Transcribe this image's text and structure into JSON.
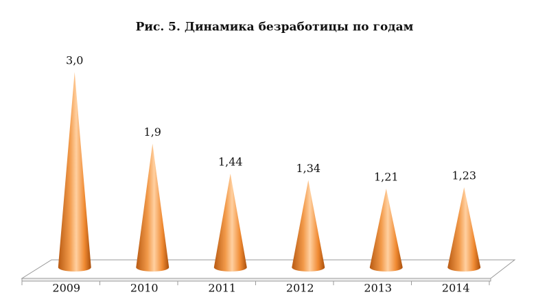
{
  "chart_data": {
    "type": "cone",
    "title": "Рис. 5. Динамика безработицы по годам",
    "categories": [
      "2009",
      "2010",
      "2011",
      "2012",
      "2013",
      "2014"
    ],
    "values": [
      3.0,
      1.9,
      1.44,
      1.34,
      1.21,
      1.23
    ],
    "value_labels": [
      "3,0",
      "1,9",
      "1,44",
      "1,34",
      "1,21",
      "1,23"
    ],
    "color": "#e8812e"
  }
}
